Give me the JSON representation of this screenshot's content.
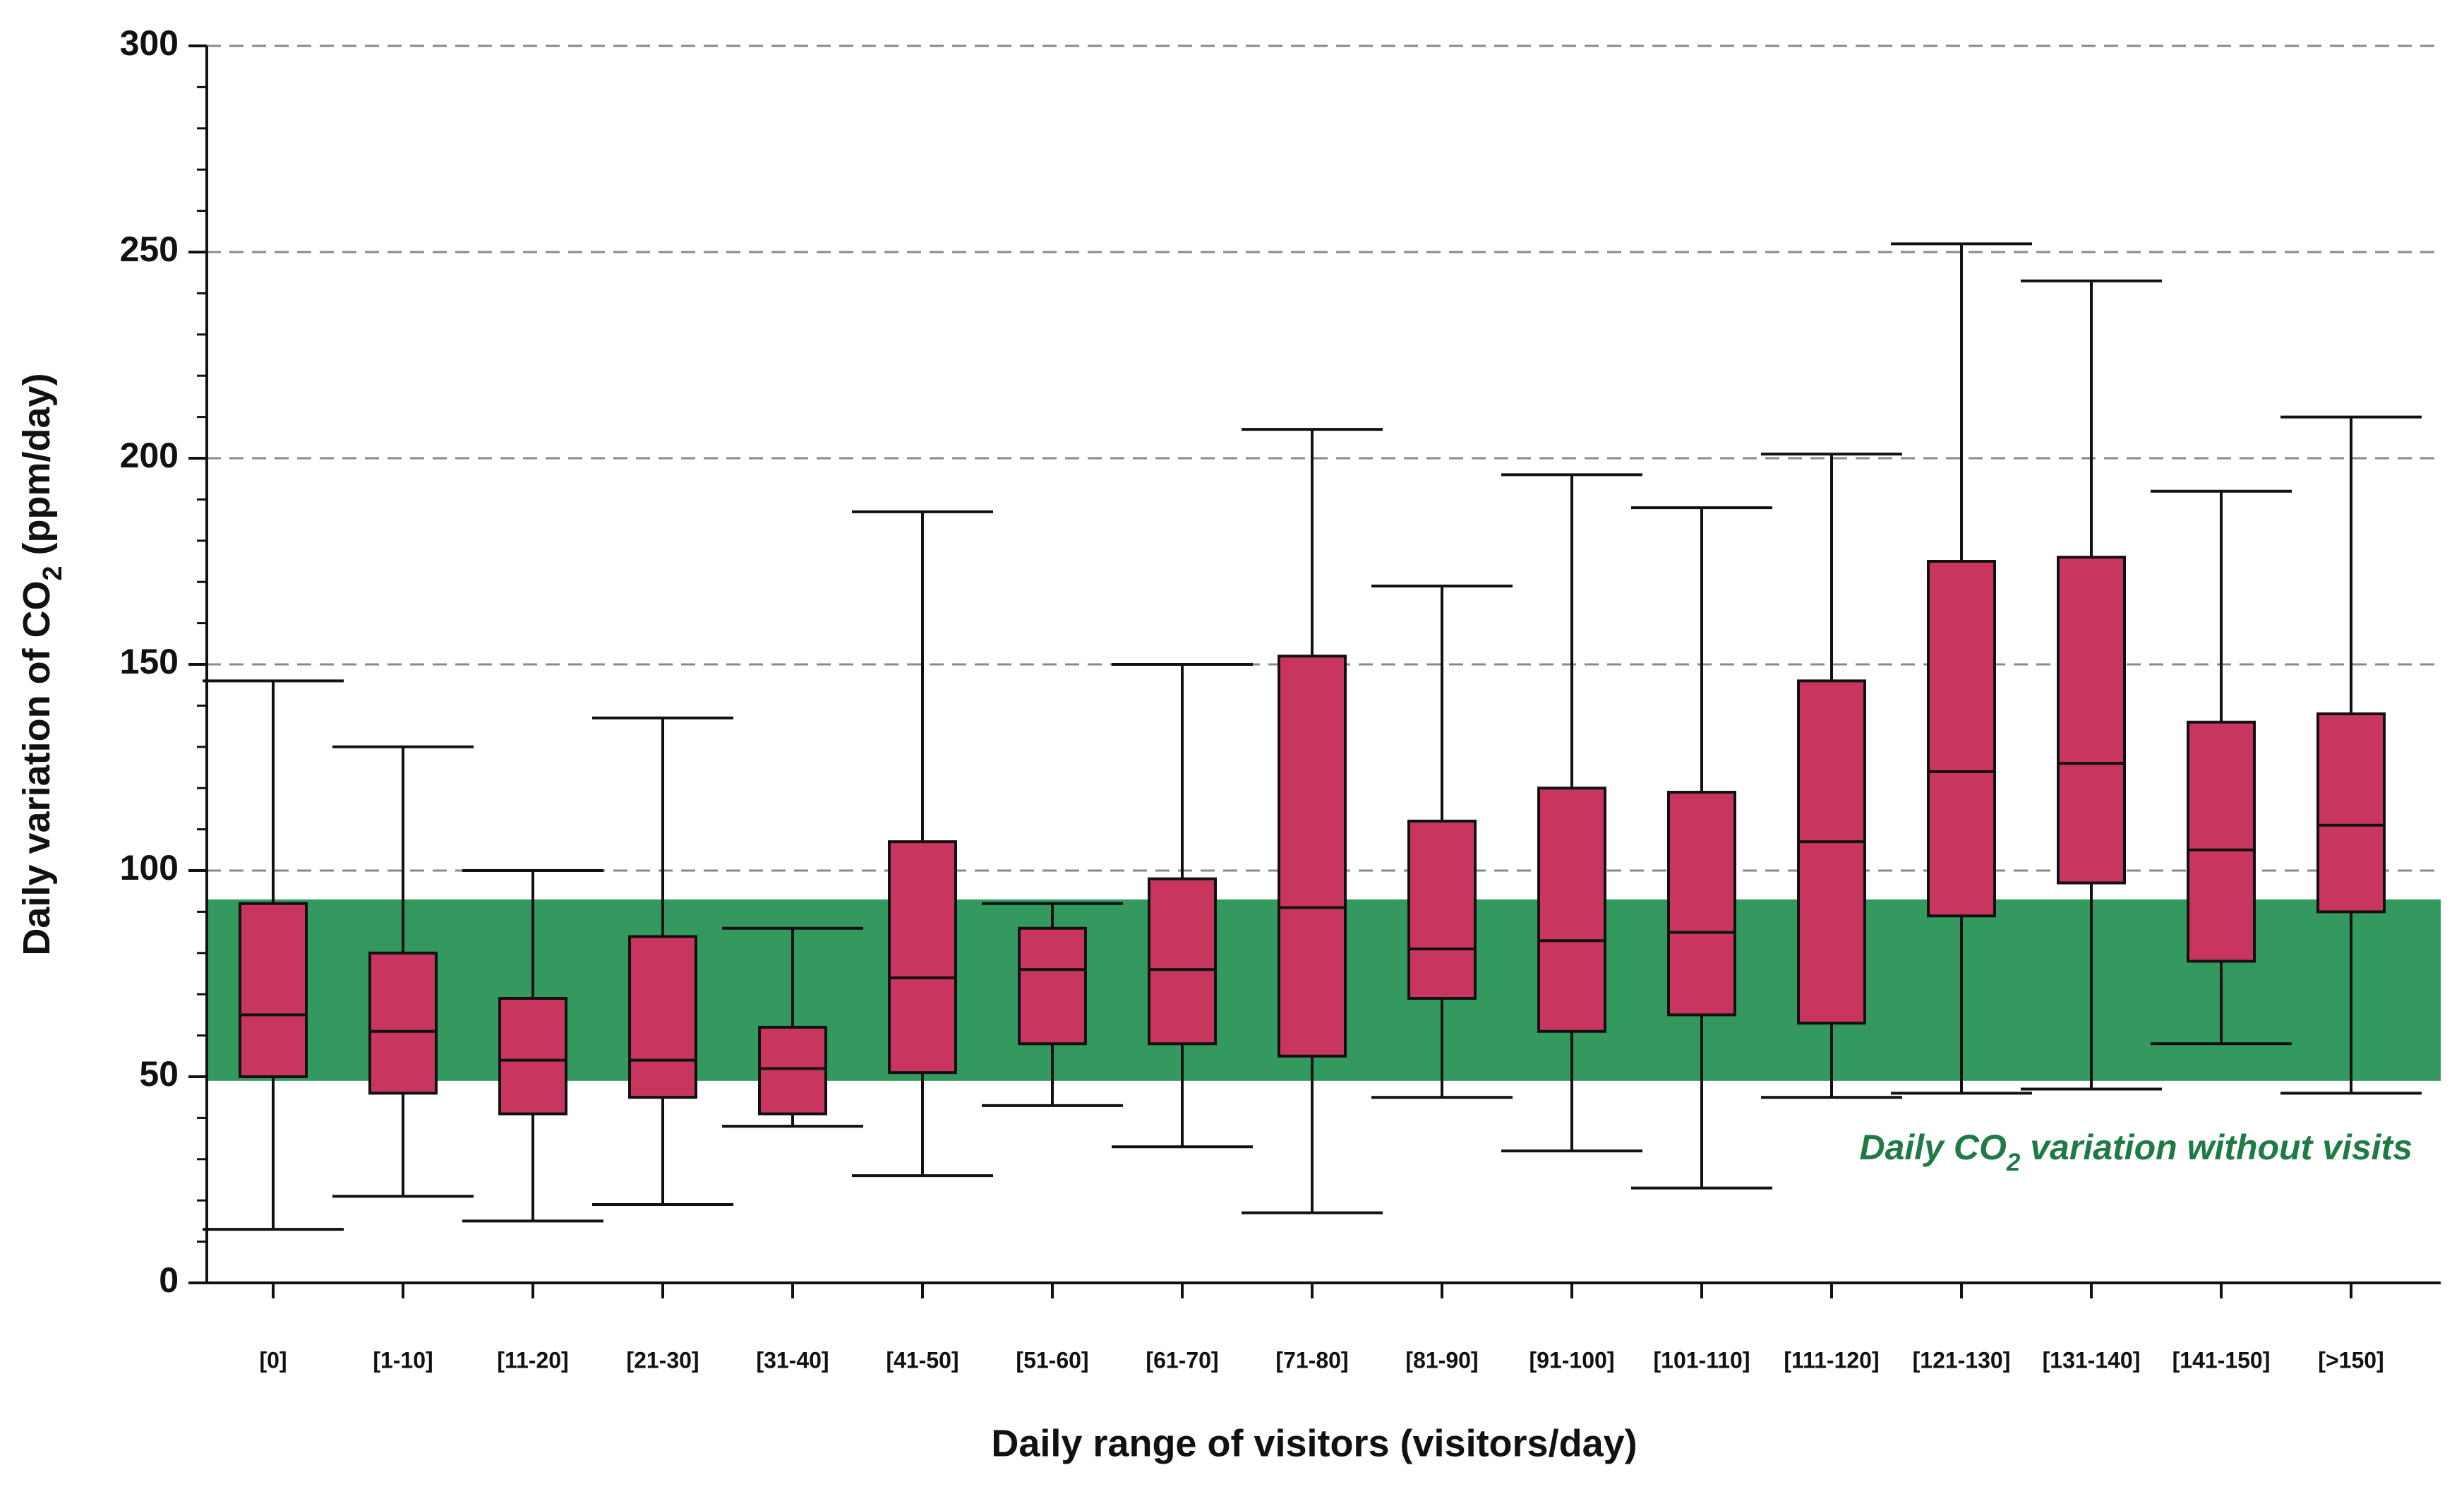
{
  "chart_data": {
    "type": "box",
    "x_label": "Daily range of visitors (visitors/day)",
    "y_label_parts": [
      "Daily variation of CO",
      "2",
      " (ppm/day)"
    ],
    "categories": [
      "[0]",
      "[1-10]",
      "[11-20]",
      "[21-30]",
      "[31-40]",
      "[41-50]",
      "[51-60]",
      "[61-70]",
      "[71-80]",
      "[81-90]",
      "[91-100]",
      "[101-110]",
      "[111-120]",
      "[121-130]",
      "[131-140]",
      "[141-150]",
      "[>150]"
    ],
    "whisker_low": [
      13,
      21,
      15,
      19,
      38,
      26,
      43,
      33,
      17,
      45,
      32,
      23,
      45,
      46,
      47,
      58,
      46
    ],
    "q1": [
      50,
      46,
      41,
      45,
      41,
      51,
      58,
      58,
      55,
      69,
      61,
      65,
      63,
      89,
      97,
      78,
      90
    ],
    "median": [
      65,
      61,
      54,
      54,
      52,
      74,
      76,
      76,
      91,
      81,
      83,
      85,
      107,
      124,
      126,
      105,
      111
    ],
    "q3": [
      92,
      80,
      69,
      84,
      62,
      107,
      86,
      98,
      152,
      112,
      120,
      119,
      146,
      175,
      176,
      136,
      138
    ],
    "whisker_high": [
      146,
      130,
      100,
      137,
      86,
      187,
      92,
      150,
      207,
      169,
      196,
      188,
      201,
      252,
      243,
      192,
      210
    ],
    "color": "#c8365f",
    "band": {
      "range": [
        49,
        93
      ],
      "color": "#33995f",
      "label_parts": [
        "Daily CO",
        "2",
        " variation without visits"
      ],
      "label_color": "#1f7a45"
    },
    "ylim": [
      0,
      300
    ],
    "yticks": [
      0,
      50,
      100,
      150,
      200,
      250,
      300
    ],
    "yminorticks": [
      10,
      20,
      30,
      40,
      60,
      70,
      80,
      90,
      110,
      120,
      130,
      140,
      160,
      170,
      180,
      190,
      210,
      220,
      230,
      240,
      260,
      270,
      280,
      290
    ],
    "grid": true
  }
}
